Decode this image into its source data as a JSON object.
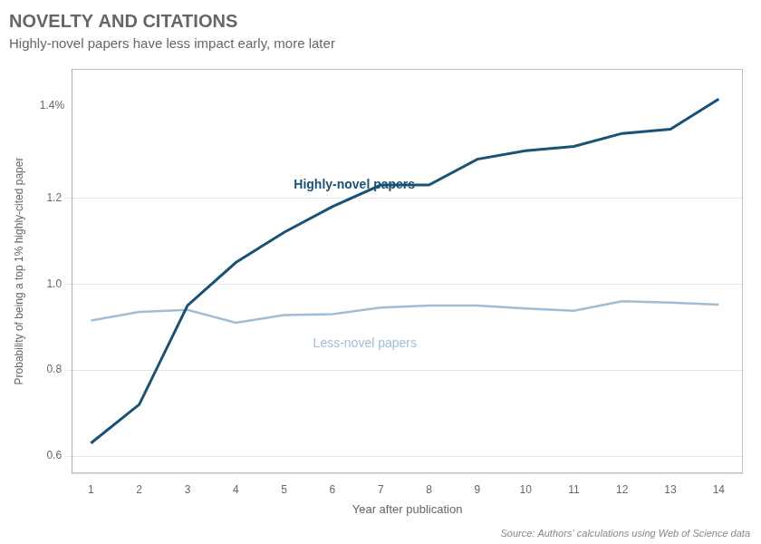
{
  "chart_data": {
    "type": "line",
    "title": "NOVELTY AND CITATIONS",
    "subtitle": "Highly-novel papers have less impact early, more later",
    "ylabel": "Probability of being a top 1% highly-cited paper",
    "xlabel": "Year after publication",
    "source": "Source: Authors’ calculations using Web of Science data",
    "x": [
      1,
      2,
      3,
      4,
      5,
      6,
      7,
      8,
      9,
      10,
      11,
      12,
      13,
      14
    ],
    "series": [
      {
        "name": "Highly-novel papers",
        "color": "#1a5276",
        "values": [
          0.63,
          0.72,
          0.95,
          1.05,
          1.12,
          1.18,
          1.23,
          1.23,
          1.29,
          1.31,
          1.32,
          1.35,
          1.36,
          1.43
        ]
      },
      {
        "name": "Less-novel papers",
        "color": "#a0bdd8",
        "values": [
          0.915,
          0.935,
          0.94,
          0.91,
          0.928,
          0.93,
          0.945,
          0.95,
          0.95,
          0.943,
          0.938,
          0.96,
          0.957,
          0.952
        ]
      }
    ],
    "xlim": [
      0.6,
      14.5
    ],
    "xticks": [
      1,
      2,
      3,
      4,
      5,
      6,
      7,
      8,
      9,
      10,
      11,
      12,
      13,
      14
    ],
    "ylim": [
      0.56,
      1.5
    ],
    "yticks": [
      0.6,
      0.8,
      {
        "value": 1.0,
        "label": "1.0"
      },
      1.2
    ],
    "grid": "y",
    "annotations": [
      {
        "text": "Highly-novel papers",
        "x": 5.2,
        "y": 1.215,
        "color": "#1a5276"
      },
      {
        "text": "Less-novel papers",
        "x": 5.6,
        "y": 0.875,
        "color": "#a0bdd8"
      },
      {
        "text": "1.4%",
        "y": 1.415
      }
    ]
  }
}
